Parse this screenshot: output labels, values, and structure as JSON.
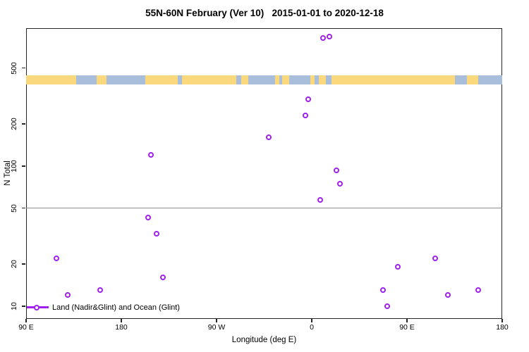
{
  "chart_data": {
    "type": "scatter",
    "title": "55N-60N February (Ver 10)   2015-01-01 to 2020-12-18",
    "xlabel": "Longitude (deg E)",
    "ylabel": "N Total",
    "x_axis": {
      "note": "longitude axis wraps eastward: 90E -> 180 -> 90W -> 0 -> 90E -> 180 (450 deg span)",
      "ticks": [
        {
          "deg": 90,
          "label": "90 E"
        },
        {
          "deg": 180,
          "label": "180"
        },
        {
          "deg": 270,
          "label": "90 W"
        },
        {
          "deg": 360,
          "label": "0"
        },
        {
          "deg": 450,
          "label": "90 E"
        },
        {
          "deg": 540,
          "label": "180"
        }
      ]
    },
    "y_axis": {
      "scale": "log",
      "ticks": [
        {
          "value": 500,
          "label": "500"
        },
        {
          "value": 200,
          "label": "200"
        },
        {
          "value": 100,
          "label": "100"
        },
        {
          "value": 50,
          "label": "50"
        },
        {
          "value": 20,
          "label": "20"
        },
        {
          "value": 10,
          "label": "10"
        }
      ]
    },
    "reference_line_value": 50,
    "legend": {
      "label": "Land (Nadir&Glint) and Ocean (Glint)"
    },
    "colors": {
      "marker": "#A020F0",
      "land": "#FAD87E",
      "ocean": "#A9BEDB",
      "ref_line": "#8C8C8C"
    },
    "points": [
      {
        "deg": 370.9,
        "n": 820
      },
      {
        "deg": 376.9,
        "n": 840
      },
      {
        "deg": 356.7,
        "n": 300
      },
      {
        "deg": 354.0,
        "n": 230
      },
      {
        "deg": 319.3,
        "n": 161
      },
      {
        "deg": 207.8,
        "n": 120
      },
      {
        "deg": 383.3,
        "n": 93
      },
      {
        "deg": 386.7,
        "n": 75
      },
      {
        "deg": 368.0,
        "n": 57
      },
      {
        "deg": 205.5,
        "n": 43
      },
      {
        "deg": 213.1,
        "n": 33
      },
      {
        "deg": 118.9,
        "n": 22
      },
      {
        "deg": 476.9,
        "n": 22
      },
      {
        "deg": 441.5,
        "n": 19
      },
      {
        "deg": 219.1,
        "n": 16
      },
      {
        "deg": 129.3,
        "n": 12
      },
      {
        "deg": 159.8,
        "n": 13
      },
      {
        "deg": 427.1,
        "n": 13
      },
      {
        "deg": 431.5,
        "n": 10
      },
      {
        "deg": 488.7,
        "n": 12
      },
      {
        "deg": 517.5,
        "n": 13
      }
    ],
    "map_band": {
      "segments": [
        {
          "from": 90,
          "to": 137.3,
          "type": "land"
        },
        {
          "from": 137.3,
          "to": 156.7,
          "type": "ocean"
        },
        {
          "from": 156.7,
          "to": 166,
          "type": "land"
        },
        {
          "from": 166,
          "to": 202.7,
          "type": "ocean"
        },
        {
          "from": 202.7,
          "to": 233.3,
          "type": "land"
        },
        {
          "from": 233.3,
          "to": 237.3,
          "type": "ocean"
        },
        {
          "from": 237.3,
          "to": 288.7,
          "type": "land"
        },
        {
          "from": 288.7,
          "to": 293.3,
          "type": "ocean"
        },
        {
          "from": 293.3,
          "to": 300,
          "type": "land"
        },
        {
          "from": 300,
          "to": 325.3,
          "type": "ocean"
        },
        {
          "from": 325.3,
          "to": 329.3,
          "type": "land"
        },
        {
          "from": 329.3,
          "to": 332,
          "type": "ocean"
        },
        {
          "from": 332,
          "to": 338.7,
          "type": "land"
        },
        {
          "from": 338.7,
          "to": 358.7,
          "type": "ocean"
        },
        {
          "from": 358.7,
          "to": 362.7,
          "type": "land"
        },
        {
          "from": 362.7,
          "to": 366.7,
          "type": "ocean"
        },
        {
          "from": 366.7,
          "to": 373.3,
          "type": "land"
        },
        {
          "from": 373.3,
          "to": 378.7,
          "type": "ocean"
        },
        {
          "from": 378.7,
          "to": 495.3,
          "type": "land"
        },
        {
          "from": 495.3,
          "to": 506.7,
          "type": "ocean"
        },
        {
          "from": 506.7,
          "to": 517.3,
          "type": "land"
        },
        {
          "from": 517.3,
          "to": 540,
          "type": "ocean"
        }
      ]
    }
  }
}
